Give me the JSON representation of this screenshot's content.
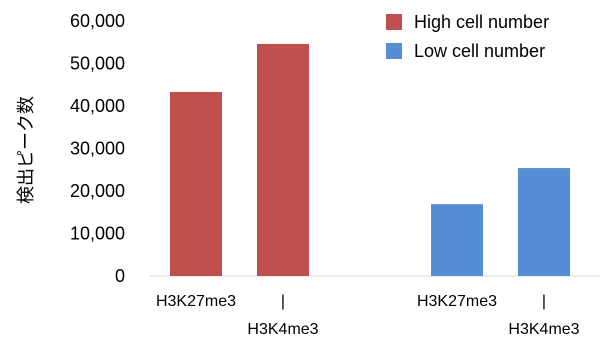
{
  "chart_data": {
    "type": "bar",
    "title": "",
    "xlabel": "",
    "ylabel": "検出ピーク数",
    "ylim": [
      0,
      60000
    ],
    "yticks": [
      0,
      10000,
      20000,
      30000,
      40000,
      50000,
      60000
    ],
    "ytick_labels": [
      "0",
      "10,000",
      "20,000",
      "30,000",
      "40,000",
      "50,000",
      "60,000"
    ],
    "grid": false,
    "legend_position": "top-right",
    "groups": [
      {
        "series": "High cell number",
        "color": "#c0504d",
        "categories": [
          {
            "lines": [
              "H3K27me3"
            ],
            "value": 43300
          },
          {
            "lines": [
              "|",
              "H3K4me3"
            ],
            "value": 54600
          }
        ]
      },
      {
        "series": "Low cell number",
        "color": "#558ed5",
        "categories": [
          {
            "lines": [
              "H3K27me3"
            ],
            "value": 16900
          },
          {
            "lines": [
              "|",
              "H3K4me3"
            ],
            "value": 25400
          }
        ]
      }
    ],
    "series": [
      {
        "name": "High cell number",
        "color": "#c0504d",
        "values": [
          43300,
          54600,
          null,
          null
        ]
      },
      {
        "name": "Low cell number",
        "color": "#558ed5",
        "values": [
          null,
          null,
          16900,
          25400
        ]
      }
    ]
  }
}
